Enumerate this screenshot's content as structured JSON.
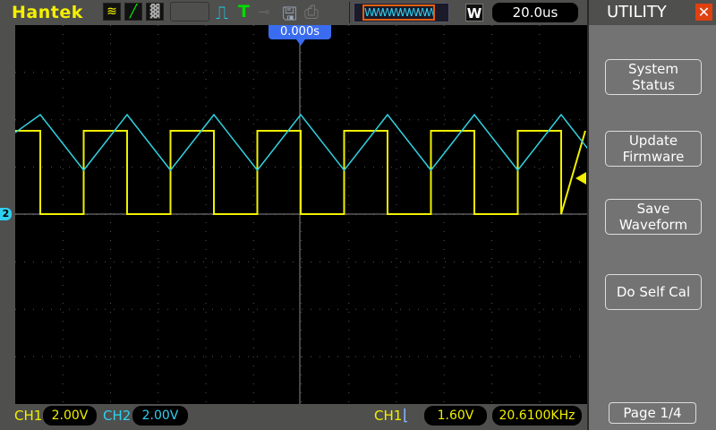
{
  "header": {
    "brand": "Hantek",
    "timebase": "20.0us",
    "mode_icon": "W",
    "trigger_position": "0.000s"
  },
  "sidebar": {
    "title": "UTILITY",
    "buttons": [
      {
        "label": "System Status"
      },
      {
        "label": "Update Firmware"
      },
      {
        "label": "Save Waveform"
      },
      {
        "label": "Do Self Cal"
      }
    ],
    "page": "Page 1/4"
  },
  "status": {
    "ch1_label": "CH1",
    "ch1_scale": "2.00V",
    "ch2_label": "CH2",
    "ch2_scale": "2.00V",
    "trig_source": "CH1",
    "trig_level": "1.60V",
    "frequency": "20.6100KHz"
  },
  "markers": {
    "ch2_ground": "2"
  },
  "colors": {
    "ch1": "#f0f000",
    "ch2": "#30d0e0",
    "accent": "#3a6cf0",
    "close": "#e04010"
  }
}
